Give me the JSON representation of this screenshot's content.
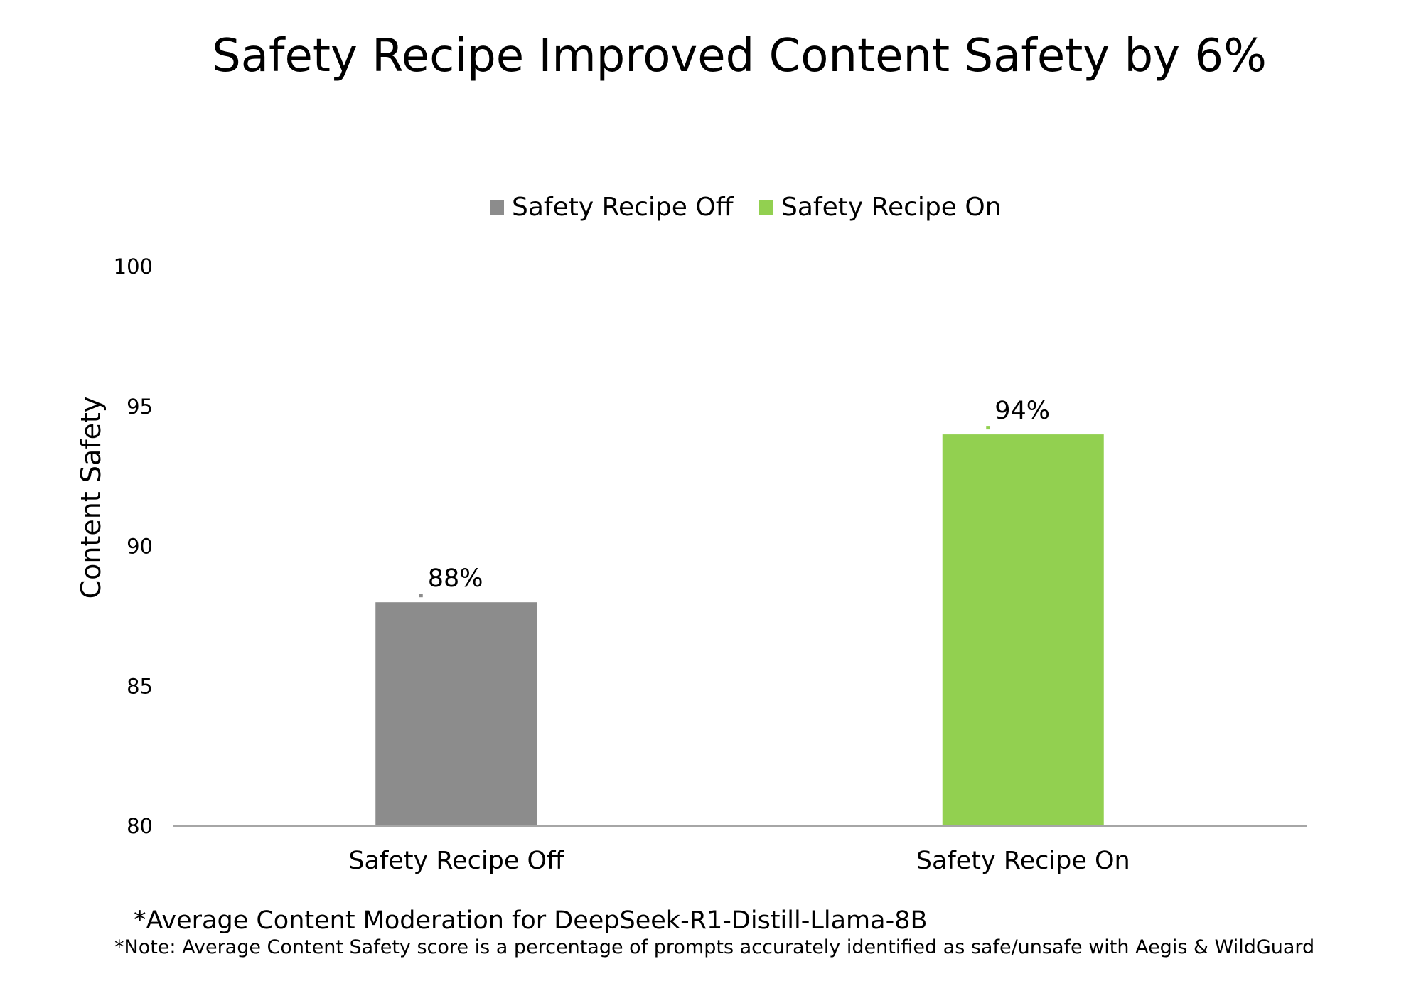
{
  "chart_data": {
    "type": "bar",
    "title": "Safety Recipe Improved Content Safety by 6%",
    "categories": [
      "Safety Recipe Off",
      "Safety Recipe On"
    ],
    "values": [
      88,
      94
    ],
    "value_labels": [
      "88%",
      "94%"
    ],
    "colors": [
      "#8c8c8c",
      "#92d050"
    ],
    "legend": {
      "placement": "top-center",
      "entries": [
        {
          "label": "Safety Recipe Off",
          "color": "#8c8c8c"
        },
        {
          "label": "Safety Recipe On",
          "color": "#92d050"
        }
      ]
    },
    "xlabel": "",
    "ylabel": "Content Safety",
    "ylim": [
      80,
      100
    ],
    "yticks": [
      80,
      85,
      90,
      95,
      100
    ],
    "grid": false
  },
  "notes": {
    "line1": "*Average Content Moderation for DeepSeek-R1-Distill-Llama-8B",
    "line2": "*Note: Average Content Safety score is a percentage of prompts accurately identified as safe/unsafe with Aegis & WildGuard"
  }
}
